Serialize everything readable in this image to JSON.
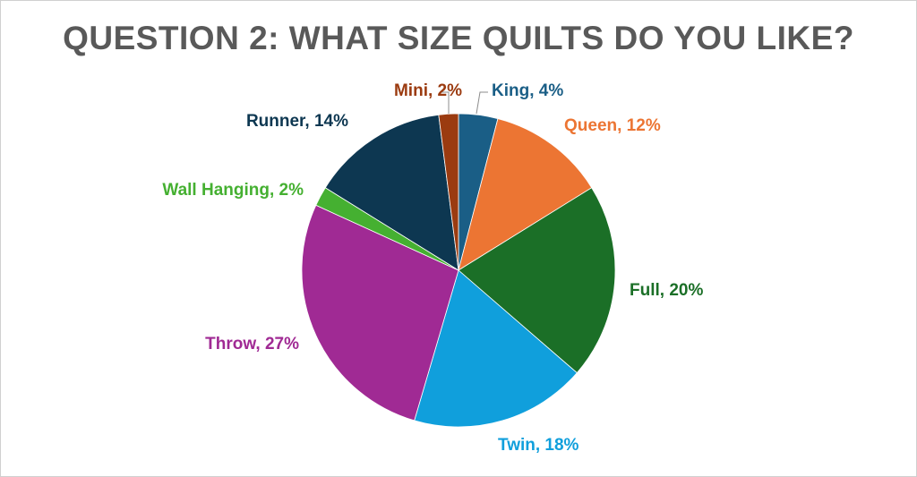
{
  "chart_data": {
    "type": "pie",
    "title": "QUESTION 2: WHAT SIZE QUILTS DO YOU LIKE?",
    "slices": [
      {
        "label": "King, 4%",
        "name": "King",
        "value": 4,
        "color": "#1a5e86"
      },
      {
        "label": "Queen, 12%",
        "name": "Queen",
        "value": 12,
        "color": "#ec7533"
      },
      {
        "label": "Full, 20%",
        "name": "Full",
        "value": 20,
        "color": "#1b6f27"
      },
      {
        "label": "Twin, 18%",
        "name": "Twin",
        "value": 18,
        "color": "#109fdc"
      },
      {
        "label": "Throw, 27%",
        "name": "Throw",
        "value": 27,
        "color": "#a02a94"
      },
      {
        "label": "Wall Hanging, 2%",
        "name": "Wall Hanging",
        "value": 2,
        "color": "#45b031"
      },
      {
        "label": "Runner, 14%",
        "name": "Runner",
        "value": 14,
        "color": "#0d3751"
      },
      {
        "label": "Mini, 2%",
        "name": "Mini",
        "value": 2,
        "color": "#9b3b10"
      }
    ],
    "legend": "none",
    "data_labels": "outside"
  }
}
